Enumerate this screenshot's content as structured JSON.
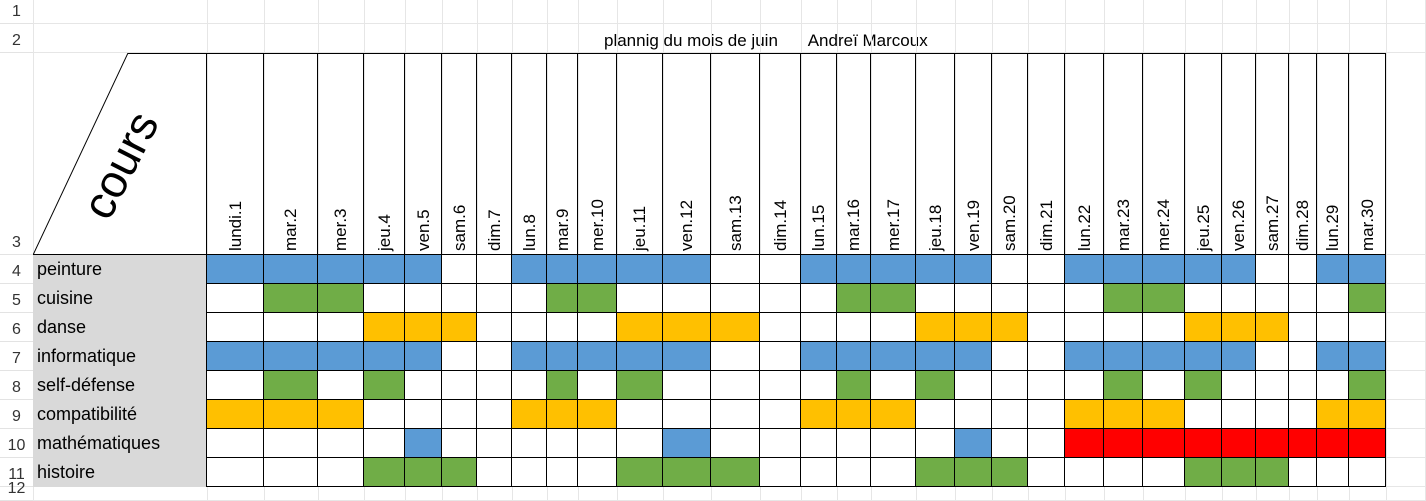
{
  "title": {
    "text": "plannig du mois de juin",
    "author": "Andreï Marcoux"
  },
  "corner_label": "cours",
  "row_numbers": [
    "1",
    "2",
    "3",
    "4",
    "5",
    "6",
    "7",
    "8",
    "9",
    "10",
    "11",
    "12"
  ],
  "days": [
    "lundi.1",
    "mar.2",
    "mer.3",
    "jeu.4",
    "ven.5",
    "sam.6",
    "dim.7",
    "lun.8",
    "mar.9",
    "mer.10",
    "jeu.11",
    "ven.12",
    "sam.13",
    "dim.14",
    "lun.15",
    "mar.16",
    "mer.17",
    "jeu.18",
    "ven.19",
    "sam.20",
    "dim.21",
    "lun.22",
    "mar.23",
    "mer.24",
    "jeu.25",
    "ven.26",
    "sam.27",
    "dim.28",
    "lun.29",
    "mar.30"
  ],
  "colors": {
    "B": "#5b9bd5",
    "G": "#70ad47",
    "Y": "#ffc000",
    "R": "#ff0000",
    "W": "#ffffff",
    "header": "#d9d9d9"
  },
  "courses": [
    {
      "name": "peinture",
      "pattern": "BBBBBWWBBBBBWWBBBBBWWBBBBBWWBB"
    },
    {
      "name": "cuisine",
      "pattern": "WGGWWWWWGGWWWWWGGWWWWWGGWWWWWG"
    },
    {
      "name": "danse",
      "pattern": "WWWYYYWWWWYYYWWWWYYYWWWWYYYWWW"
    },
    {
      "name": "informatique",
      "pattern": "BBBBBWWBBBBBWWBBBBBWWBBBBBWWBB"
    },
    {
      "name": "self-défense",
      "pattern": "WGWGWWWWGWGWWWWGWGWWWWGWGWWWWG"
    },
    {
      "name": "compatibilité",
      "pattern": "YYYWWWWYYYWWWWYYYWWWWYYYWWWWYY"
    },
    {
      "name": "mathématiques",
      "pattern": "WWWWBWWWWWWBWWWWWWBWWRRRRRRRRR"
    },
    {
      "name": "histoire",
      "pattern": "WWWGGGWWWWGGGWWWWGGGWWWWGGGWWW"
    }
  ]
}
